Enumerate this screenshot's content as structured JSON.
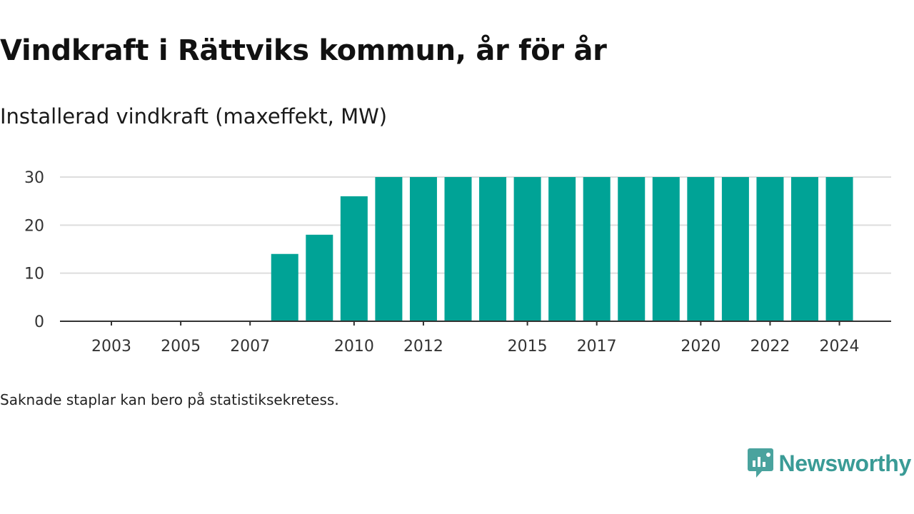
{
  "header": {
    "title": "Vindkraft i Rättviks kommun, år för år",
    "subtitle": "Installerad vindkraft (maxeffekt, MW)"
  },
  "footer": {
    "note": "Saknade staplar kan bero på statistiksekretess.",
    "brand": "Newsworthy"
  },
  "colors": {
    "bar": "#00a396",
    "grid": "#dddddd",
    "axis": "#333333",
    "brand": "#3a9b96"
  },
  "chart_data": {
    "type": "bar",
    "title": "Vindkraft i Rättviks kommun, år för år",
    "subtitle": "Installerad vindkraft (maxeffekt, MW)",
    "xlabel": "",
    "ylabel": "",
    "ylim": [
      0,
      30
    ],
    "yticks": [
      0,
      10,
      20,
      30
    ],
    "grid": true,
    "categories": [
      2002,
      2003,
      2004,
      2005,
      2006,
      2007,
      2008,
      2009,
      2010,
      2011,
      2012,
      2013,
      2014,
      2015,
      2016,
      2017,
      2018,
      2019,
      2020,
      2021,
      2022,
      2023,
      2024
    ],
    "values": [
      null,
      null,
      null,
      null,
      null,
      null,
      14,
      18,
      26,
      30,
      30,
      30,
      30,
      30,
      30,
      30,
      30,
      30,
      30,
      30,
      30,
      30,
      30
    ],
    "x_tick_labels": [
      "2003",
      "2005",
      "2007",
      "2010",
      "2012",
      "2015",
      "2017",
      "2020",
      "2022",
      "2024"
    ]
  }
}
